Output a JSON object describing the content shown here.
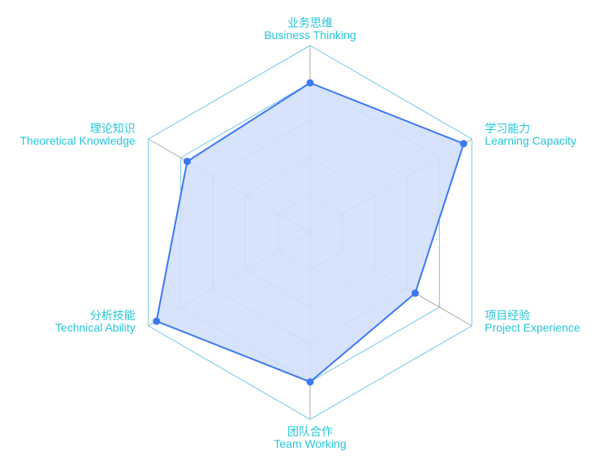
{
  "chart_data": {
    "type": "radar",
    "indicators": [
      {
        "name": "业务思维\nBusiness Thinking",
        "max": 100
      },
      {
        "name": "学习能力\nLearning Capacity",
        "max": 100
      },
      {
        "name": "项目经验\nProject Experience",
        "max": 100
      },
      {
        "name": "团队合作\nTeam Working",
        "max": 100
      },
      {
        "name": "分析技能\nTechnical Ability",
        "max": 100
      },
      {
        "name": "理论知识\nTheoretical Knowledge",
        "max": 100
      }
    ],
    "series": [
      {
        "values": [
          80,
          95,
          65,
          80,
          95,
          76
        ]
      }
    ],
    "rings": 5,
    "colors": {
      "label": "#26c6da",
      "ring": "#6ec6e6",
      "spoke": "#a9a9a9",
      "line": "#3c78f0",
      "fill": "#d3dffb",
      "point": "#3c78f0"
    }
  }
}
